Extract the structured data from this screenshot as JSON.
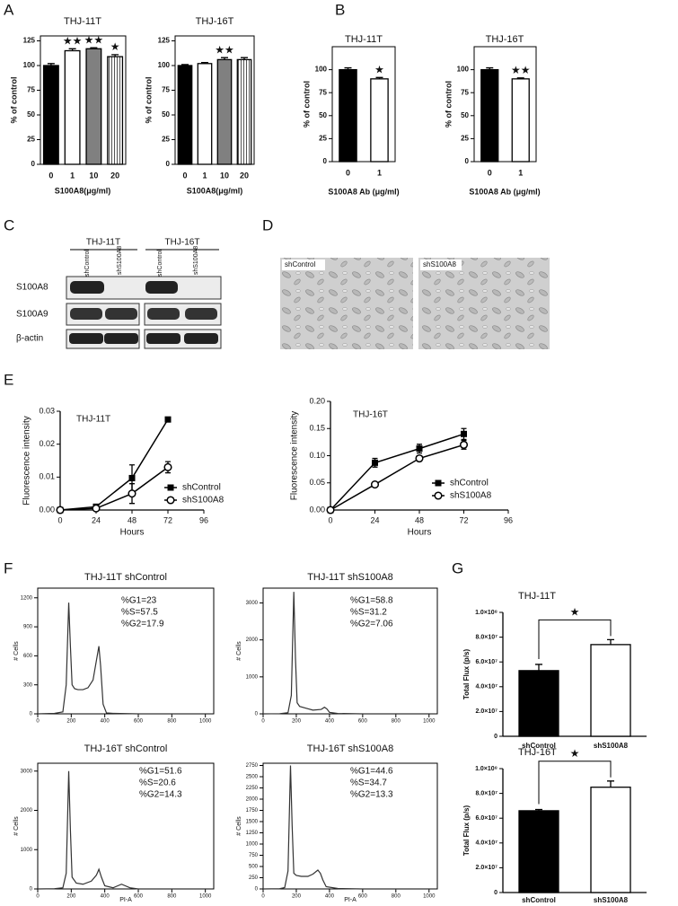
{
  "panel_labels": [
    "A",
    "B",
    "C",
    "D",
    "E",
    "F",
    "G"
  ],
  "blot": {
    "groups": [
      "THJ-11T",
      "THJ-16T"
    ],
    "lanes": [
      "shControl",
      "shS100A8",
      "shControl",
      "shS100A8"
    ],
    "rows": [
      "S100A8",
      "S100A9",
      "β-actin"
    ]
  },
  "micrographs": {
    "labels": [
      "shControl",
      "shS100A8"
    ]
  },
  "chart_data": [
    {
      "type": "bar",
      "title": "THJ-11T",
      "categories": [
        "0",
        "1",
        "10",
        "20"
      ],
      "values": [
        100,
        115,
        117,
        109
      ],
      "errors": [
        2,
        2,
        1,
        2
      ],
      "annotations": [
        null,
        "★★",
        "★★",
        "★"
      ],
      "colors": [
        "#000000",
        "#ffffff",
        "#808080",
        "#ffffff"
      ],
      "hatched": [
        false,
        false,
        false,
        true
      ],
      "ylim": [
        0,
        130
      ],
      "yticks": [
        0,
        25,
        50,
        75,
        100,
        125
      ],
      "xlabel": "S100A8(μg/ml)",
      "ylabel": "% of control"
    },
    {
      "type": "bar",
      "title": "THJ-16T",
      "categories": [
        "0",
        "1",
        "10",
        "20"
      ],
      "values": [
        100,
        102,
        106,
        106
      ],
      "errors": [
        1,
        1,
        2,
        2
      ],
      "annotations": [
        null,
        null,
        "★★",
        null
      ],
      "colors": [
        "#000000",
        "#ffffff",
        "#808080",
        "#ffffff"
      ],
      "hatched": [
        false,
        false,
        false,
        true
      ],
      "ylim": [
        0,
        130
      ],
      "yticks": [
        0,
        25,
        50,
        75,
        100,
        125
      ],
      "xlabel": "S100A8(μg/ml)",
      "ylabel": "% of control"
    },
    {
      "type": "bar",
      "title": "THJ-11T",
      "categories": [
        "0",
        "1"
      ],
      "values": [
        100,
        90
      ],
      "errors": [
        2,
        1.5
      ],
      "annotations": [
        null,
        "★"
      ],
      "colors": [
        "#000000",
        "#ffffff"
      ],
      "ylim": [
        0,
        125
      ],
      "yticks": [
        0,
        25,
        50,
        75,
        100
      ],
      "xlabel": "S100A8 Ab (μg/ml)",
      "ylabel": "% of control"
    },
    {
      "type": "bar",
      "title": "THJ-16T",
      "categories": [
        "0",
        "1"
      ],
      "values": [
        100,
        90
      ],
      "errors": [
        2,
        1
      ],
      "annotations": [
        null,
        "★★"
      ],
      "colors": [
        "#000000",
        "#ffffff"
      ],
      "ylim": [
        0,
        125
      ],
      "yticks": [
        0,
        25,
        50,
        75,
        100
      ],
      "xlabel": "S100A8 Ab (μg/ml)",
      "ylabel": "% of control"
    },
    {
      "type": "line",
      "title": "THJ-11T",
      "x": [
        0,
        24,
        48,
        72
      ],
      "xlim": [
        0,
        96
      ],
      "xticks": [
        0,
        24,
        48,
        72,
        96
      ],
      "ylim": [
        0,
        0.03
      ],
      "yticks": [
        {
          "value": 0,
          "label": "0.00"
        },
        0.01,
        0.02,
        0.03
      ],
      "xlabel": "Hours",
      "ylabel": "Fluorescence intensity",
      "legend": "lower right",
      "series": [
        {
          "name": "shControl",
          "color": "#000000",
          "marker": "square",
          "marker_fill": "#000000",
          "values": [
            0,
            0.001,
            0.0097,
            0.0275
          ],
          "errors": [
            0,
            0.0005,
            0.004,
            0
          ]
        },
        {
          "name": "shS100A8",
          "color": "#000000",
          "marker": "circle",
          "marker_fill": "#ffffff",
          "values": [
            0,
            0.0005,
            0.005,
            0.013
          ],
          "errors": [
            0,
            0.0003,
            0.003,
            0.0017
          ]
        }
      ]
    },
    {
      "type": "line",
      "title": "THJ-16T",
      "x": [
        0,
        24,
        48,
        72
      ],
      "xlim": [
        0,
        96
      ],
      "xticks": [
        0,
        24,
        48,
        72,
        96
      ],
      "ylim": [
        0,
        0.2
      ],
      "yticks": [
        {
          "value": 0,
          "label": "0.00"
        },
        0.05,
        {
          "value": 0.1,
          "label": "0.10"
        },
        0.15,
        {
          "value": 0.2,
          "label": "0.20"
        }
      ],
      "xlabel": "Hours",
      "ylabel": "Fluorescence intensity",
      "legend": "lower right",
      "series": [
        {
          "name": "shControl",
          "color": "#000000",
          "marker": "square",
          "marker_fill": "#000000",
          "values": [
            0,
            0.087,
            0.113,
            0.14
          ],
          "errors": [
            0,
            0.008,
            0.008,
            0.01
          ]
        },
        {
          "name": "shS100A8",
          "color": "#000000",
          "marker": "circle",
          "marker_fill": "#ffffff",
          "values": [
            0,
            0.047,
            0.095,
            0.12
          ],
          "errors": [
            0,
            0.004,
            0.005,
            0.008
          ]
        }
      ]
    },
    {
      "type": "line",
      "title": "THJ-11T shControl",
      "annotations": [
        "%G1=23",
        "%S=57.5",
        "%G2=17.9"
      ],
      "ylabel": "# Cells",
      "xlim": [
        0,
        1050
      ],
      "xticks": [
        0,
        200,
        400,
        600,
        800,
        1000
      ],
      "ylim": [
        0,
        1300
      ],
      "yticks": [
        0,
        300,
        600,
        900,
        1200
      ],
      "x": [
        0,
        100,
        150,
        170,
        185,
        195,
        205,
        220,
        240,
        270,
        300,
        330,
        350,
        365,
        375,
        390,
        410,
        450,
        600,
        1000
      ],
      "series": [
        {
          "color": "#333333",
          "values": [
            0,
            5,
            20,
            300,
            1150,
            700,
            300,
            260,
            250,
            250,
            270,
            350,
            550,
            700,
            500,
            100,
            10,
            5,
            0,
            0
          ]
        }
      ]
    },
    {
      "type": "line",
      "title": "THJ-11T shS100A8",
      "annotations": [
        "%G1=58.8",
        "%S=31.2",
        "%G2=7.06"
      ],
      "ylabel": "# Cells",
      "xlim": [
        0,
        1050
      ],
      "xticks": [
        0,
        200,
        400,
        600,
        800,
        1000
      ],
      "ylim": [
        0,
        3400
      ],
      "yticks": [
        0,
        1000,
        2000,
        3000
      ],
      "x": [
        0,
        100,
        150,
        170,
        185,
        195,
        205,
        220,
        260,
        300,
        350,
        370,
        385,
        400,
        450,
        600,
        1000
      ],
      "series": [
        {
          "color": "#333333",
          "values": [
            0,
            5,
            30,
            500,
            3300,
            1500,
            300,
            200,
            150,
            100,
            120,
            180,
            130,
            40,
            10,
            0,
            0
          ]
        }
      ]
    },
    {
      "type": "line",
      "title": "THJ-16T shControl",
      "annotations": [
        "%G1=51.6",
        "%S=20.6",
        "%G2=14.3"
      ],
      "ylabel": "# Cells",
      "xlabel": "PI-A",
      "xlim": [
        0,
        1050
      ],
      "xticks": [
        0,
        200,
        400,
        600,
        800,
        1000
      ],
      "ylim": [
        0,
        3200
      ],
      "yticks": [
        0,
        1000,
        2000,
        3000
      ],
      "x": [
        0,
        100,
        150,
        170,
        185,
        195,
        205,
        230,
        270,
        320,
        350,
        365,
        380,
        400,
        450,
        500,
        550,
        600,
        1000
      ],
      "series": [
        {
          "color": "#333333",
          "values": [
            0,
            5,
            30,
            400,
            3000,
            1500,
            300,
            150,
            120,
            200,
            350,
            500,
            300,
            80,
            30,
            120,
            30,
            0,
            0
          ]
        }
      ]
    },
    {
      "type": "line",
      "title": "THJ-16T shS100A8",
      "annotations": [
        "%G1=44.6",
        "%S=34.7",
        "%G2=13.3"
      ],
      "ylabel": "# Cells",
      "xlabel": "PI-A",
      "xlim": [
        0,
        1050
      ],
      "xticks": [
        0,
        200,
        400,
        600,
        800,
        1000
      ],
      "ylim": [
        0,
        2800
      ],
      "yticks": [
        0,
        250,
        500,
        750,
        1000,
        1250,
        1500,
        1750,
        2000,
        2250,
        2500,
        2750
      ],
      "x": [
        0,
        100,
        130,
        150,
        165,
        175,
        185,
        200,
        230,
        270,
        300,
        330,
        345,
        360,
        380,
        450,
        600,
        1000
      ],
      "series": [
        {
          "color": "#333333",
          "values": [
            0,
            5,
            30,
            400,
            2750,
            1400,
            350,
            300,
            280,
            280,
            330,
            420,
            350,
            200,
            50,
            10,
            0,
            0
          ]
        }
      ]
    },
    {
      "type": "bar",
      "title": "THJ-11T",
      "categories": [
        "shControl",
        "shS100A8"
      ],
      "values": [
        53000000,
        74000000
      ],
      "errors": [
        5000000,
        4000000
      ],
      "colors": [
        "#000000",
        "#ffffff"
      ],
      "significance": "★",
      "ylabel": "Total Flux (p/s)",
      "ylim": [
        0,
        100000000
      ],
      "yticks": [
        0,
        {
          "value": 20000000,
          "label": "2.0×10⁷"
        },
        {
          "value": 40000000,
          "label": "4.0×10⁷"
        },
        {
          "value": 60000000,
          "label": "6.0×10⁷"
        },
        {
          "value": 80000000,
          "label": "8.0×10⁷"
        },
        {
          "value": 100000000,
          "label": "1.0×10⁸"
        }
      ]
    },
    {
      "type": "bar",
      "title": "THJ-16T",
      "categories": [
        "shControl",
        "shS100A8"
      ],
      "values": [
        66000000,
        85000000
      ],
      "errors": [
        1000000,
        5000000
      ],
      "colors": [
        "#000000",
        "#ffffff"
      ],
      "significance": "★",
      "ylabel": "Total Flux (p/s)",
      "ylim": [
        0,
        100000000
      ],
      "yticks": [
        0,
        {
          "value": 20000000,
          "label": "2.0×10⁷"
        },
        {
          "value": 40000000,
          "label": "4.0×10⁷"
        },
        {
          "value": 60000000,
          "label": "6.0×10⁷"
        },
        {
          "value": 80000000,
          "label": "8.0×10⁷"
        },
        {
          "value": 100000000,
          "label": "1.0×10⁸"
        }
      ]
    }
  ]
}
